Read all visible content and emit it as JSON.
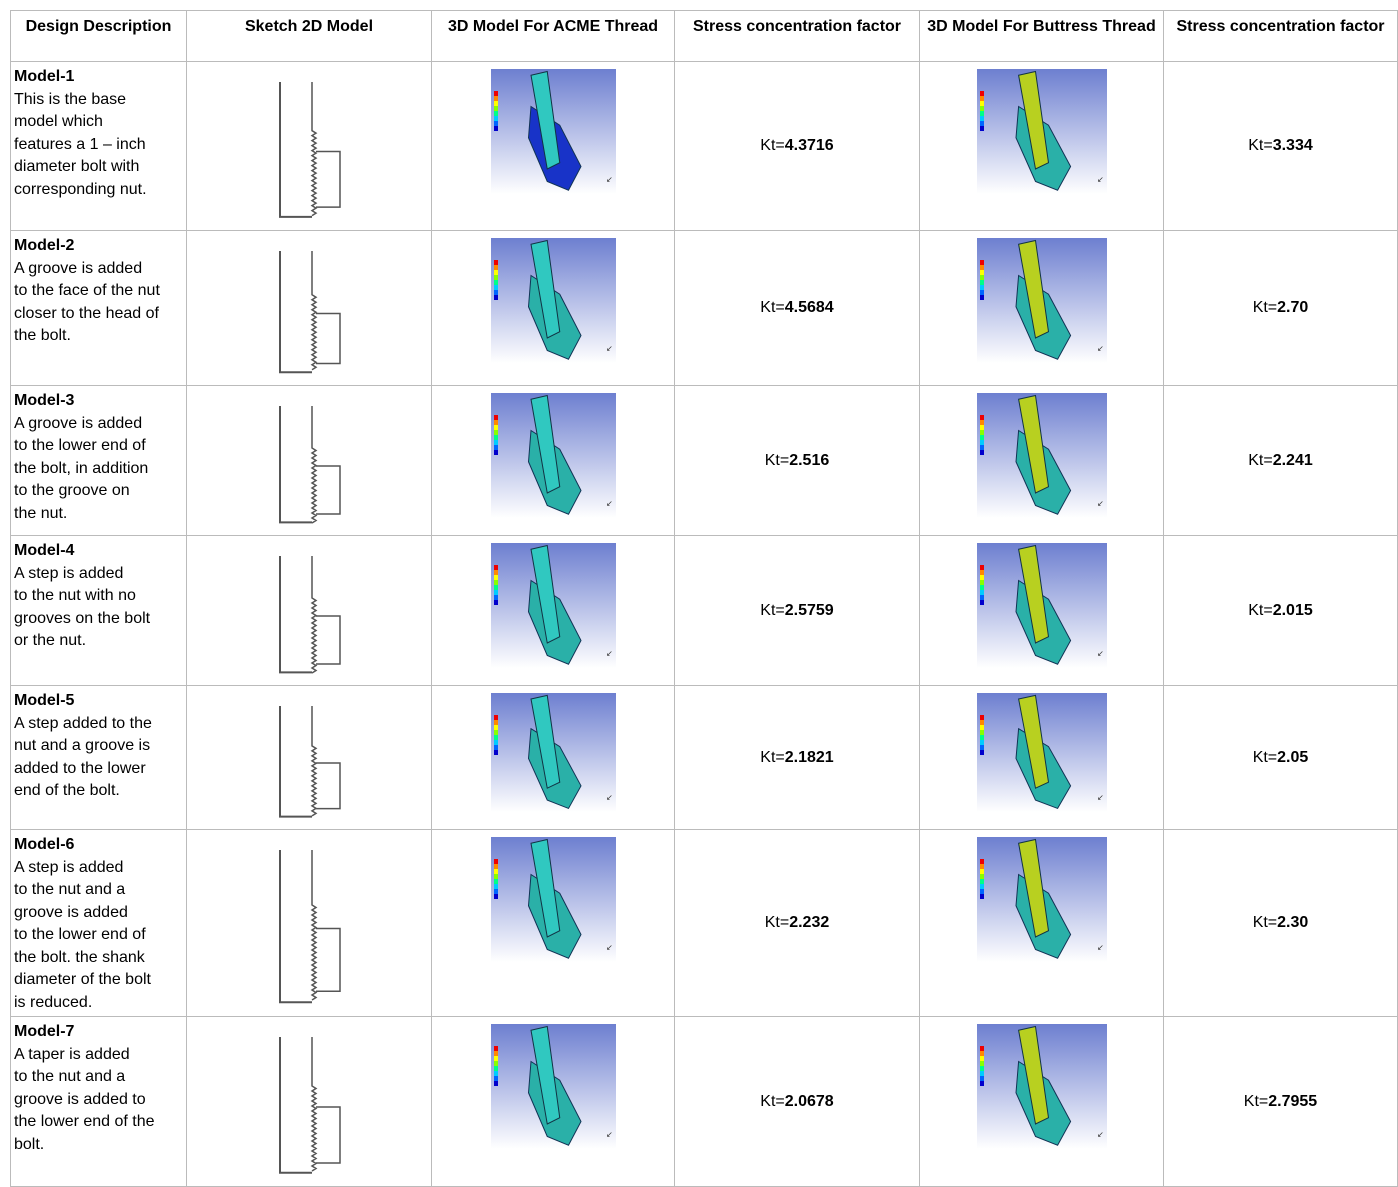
{
  "table": {
    "header": [
      "Design Description",
      "Sketch 2D Model",
      "3D Model For ACME Thread",
      "Stress concentration factor",
      "3D Model For Buttress Thread",
      "Stress concentration factor"
    ],
    "rows": [
      {
        "title": "Model-1",
        "lines": [
          "This is the base",
          "model which",
          "features a 1 – inch",
          "diameter bolt with",
          "corresponding nut."
        ],
        "acme_kt": {
          "prefix": "Kt=",
          "value": "4.3716"
        },
        "buttress_kt": {
          "prefix": "Kt=",
          "value": "3.334"
        }
      },
      {
        "title": "Model-2",
        "lines": [
          "A groove is added",
          "to the face of the nut",
          "closer to the head of",
          "the bolt."
        ],
        "acme_kt": {
          "prefix": "Kt=",
          "value": "4.5684"
        },
        "buttress_kt": {
          "prefix": "Kt=",
          "value": "2.70"
        }
      },
      {
        "title": "Model-3",
        "lines": [
          "A groove is added",
          "to the lower end of",
          "the bolt, in addition",
          "to the groove on",
          "the nut."
        ],
        "acme_kt": {
          "prefix": "Kt=",
          "value": "2.516"
        },
        "buttress_kt": {
          "prefix": "Kt=",
          "value": "2.241"
        }
      },
      {
        "title": "Model-4",
        "lines": [
          "A step is added",
          "to the nut with no",
          "grooves on the bolt",
          "or the nut."
        ],
        "acme_kt": {
          "prefix": "Kt=",
          "value": "2.5759"
        },
        "buttress_kt": {
          "prefix": "Kt=",
          "value": "2.015"
        }
      },
      {
        "title": "Model-5",
        "lines": [
          "A step added to the",
          "nut and a groove is",
          "added to the lower",
          "end of the bolt."
        ],
        "acme_kt": {
          "prefix": "Kt=",
          "value": "2.1821"
        },
        "buttress_kt": {
          "prefix": "Kt=",
          "value": "2.05"
        }
      },
      {
        "title": "Model-6",
        "lines": [
          "A step is added",
          "to the nut and a",
          "groove is added",
          "to the lower end of",
          "the bolt. the shank",
          "diameter of the bolt",
          "is reduced."
        ],
        "acme_kt": {
          "prefix": "Kt=",
          "value": "2.232"
        },
        "buttress_kt": {
          "prefix": "Kt=",
          "value": "2.30"
        }
      },
      {
        "title": "Model-7",
        "lines": [
          "A taper  is added",
          "to the nut and a",
          "groove is added to",
          "the lower end of the",
          "bolt."
        ],
        "acme_kt": {
          "prefix": "Kt=",
          "value": "2.0678"
        },
        "buttress_kt": {
          "prefix": "Kt=",
          "value": "2.7955"
        }
      }
    ]
  }
}
